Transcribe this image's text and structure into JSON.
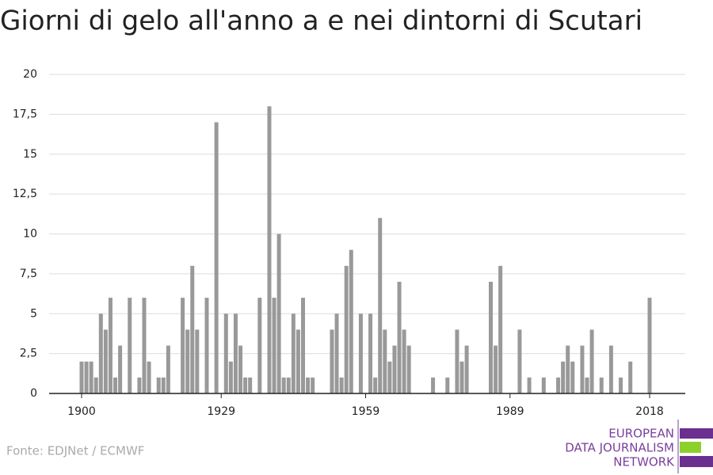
{
  "chart_data": {
    "type": "bar",
    "title": "Giorni di gelo all'anno a e nei dintorni di Scutari",
    "categories": [
      "1900",
      null,
      null,
      null,
      null,
      null,
      null,
      null,
      null,
      null,
      null,
      null,
      null,
      null,
      null,
      null,
      null,
      null,
      null,
      null,
      null,
      null,
      null,
      null,
      null,
      null,
      null,
      null,
      null,
      "1929",
      null,
      null,
      null,
      null,
      null,
      null,
      null,
      null,
      null,
      null,
      null,
      null,
      null,
      null,
      null,
      null,
      null,
      null,
      null,
      null,
      null,
      null,
      null,
      null,
      null,
      null,
      null,
      null,
      null,
      "1959",
      null,
      null,
      null,
      null,
      null,
      null,
      null,
      null,
      null,
      null,
      null,
      null,
      null,
      null,
      null,
      null,
      null,
      null,
      null,
      null,
      null,
      null,
      null,
      null,
      null,
      null,
      null,
      null,
      null,
      "1989",
      null,
      null,
      null,
      null,
      null,
      null,
      null,
      null,
      null,
      null,
      null,
      null,
      null,
      null,
      null,
      null,
      null,
      null,
      null,
      null,
      null,
      null,
      null,
      null,
      null,
      null,
      null,
      null,
      "2018"
    ],
    "values": [
      2,
      2,
      2,
      1,
      5,
      4,
      6,
      1,
      3,
      0,
      6,
      0,
      1,
      6,
      2,
      0,
      1,
      1,
      3,
      0,
      0,
      6,
      4,
      8,
      4,
      0,
      6,
      0,
      17,
      0,
      5,
      2,
      5,
      3,
      1,
      1,
      0,
      6,
      0,
      18,
      6,
      10,
      1,
      1,
      5,
      4,
      6,
      1,
      1,
      0,
      0,
      0,
      4,
      5,
      1,
      8,
      9,
      0,
      5,
      0,
      5,
      1,
      11,
      4,
      2,
      3,
      7,
      4,
      3,
      0,
      0,
      0,
      0,
      1,
      0,
      0,
      1,
      0,
      4,
      2,
      3,
      0,
      0,
      0,
      0,
      7,
      3,
      8,
      0,
      0,
      0,
      4,
      0,
      1,
      0,
      0,
      1,
      0,
      0,
      1,
      2,
      3,
      2,
      0,
      3,
      1,
      4,
      0,
      1,
      0,
      3,
      0,
      1,
      0,
      2,
      0,
      0,
      0,
      6
    ],
    "color": "#999999",
    "ylim": [
      0,
      20
    ],
    "yticks": [
      0,
      {
        "value": 2.5,
        "label": "2,5"
      },
      5,
      {
        "value": 7.5,
        "label": "7,5"
      },
      10,
      {
        "value": 12.5,
        "label": "12,5"
      },
      15,
      {
        "value": 17.5,
        "label": "17,5"
      },
      20
    ],
    "grid": true,
    "source": "Fonte: EDJNet / ECMWF",
    "logo": [
      "EUROPEAN",
      "DATA JOURNALISM",
      "NETWORK"
    ]
  }
}
